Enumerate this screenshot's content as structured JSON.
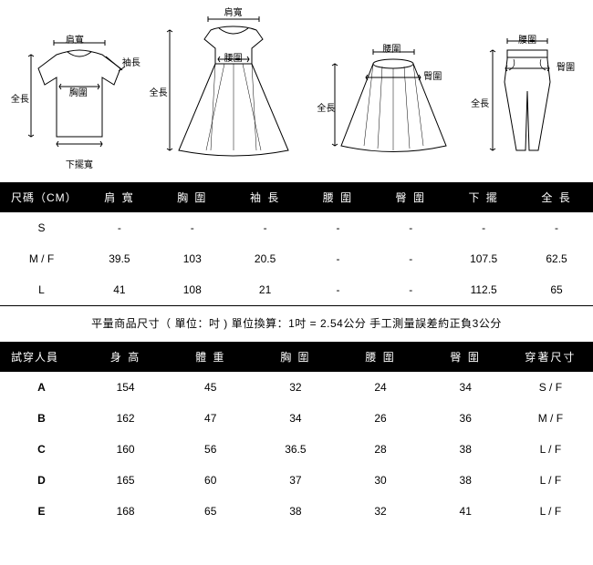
{
  "diagrams": {
    "tshirt": {
      "shoulder": "肩寬",
      "sleeve": "袖長",
      "chest": "胸圍",
      "length": "全長",
      "hem": "下擺寬"
    },
    "dress": {
      "shoulder": "肩寬",
      "waist": "腰圍",
      "length": "全長"
    },
    "skirt": {
      "waist": "腰圍",
      "hip": "臀圍",
      "length": "全長"
    },
    "pants": {
      "waist": "腰圍",
      "hip": "臀圍",
      "length": "全長"
    }
  },
  "size_table": {
    "headers": [
      "尺碼（CM）",
      "肩 寬",
      "胸 圍",
      "袖 長",
      "腰 圍",
      "臀 圍",
      "下 擺",
      "全 長"
    ],
    "rows": [
      {
        "size": "S",
        "shoulder": "-",
        "chest": "-",
        "sleeve": "-",
        "waist": "-",
        "hip": "-",
        "hem": "-",
        "length": "-"
      },
      {
        "size": "M / F",
        "shoulder": "39.5",
        "chest": "103",
        "sleeve": "20.5",
        "waist": "-",
        "hip": "-",
        "hem": "107.5",
        "length": "62.5"
      },
      {
        "size": "L",
        "shoulder": "41",
        "chest": "108",
        "sleeve": "21",
        "waist": "-",
        "hip": "-",
        "hem": "112.5",
        "length": "65"
      }
    ]
  },
  "note": "平量商品尺寸（ 單位：吋 ) 單位換算：1吋 = 2.54公分  手工測量誤差約正負3公分",
  "fit_table": {
    "headers": [
      "試穿人員",
      "身 高",
      "體 重",
      "胸 圍",
      "腰 圍",
      "臀 圍",
      "穿著尺寸"
    ],
    "rows": [
      {
        "person": "A",
        "height": "154",
        "weight": "45",
        "chest": "32",
        "waist": "24",
        "hip": "34",
        "size": "S / F"
      },
      {
        "person": "B",
        "height": "162",
        "weight": "47",
        "chest": "34",
        "waist": "26",
        "hip": "36",
        "size": "M / F"
      },
      {
        "person": "C",
        "height": "160",
        "weight": "56",
        "chest": "36.5",
        "waist": "28",
        "hip": "38",
        "size": "L / F"
      },
      {
        "person": "D",
        "height": "165",
        "weight": "60",
        "chest": "37",
        "waist": "30",
        "hip": "38",
        "size": "L / F"
      },
      {
        "person": "E",
        "height": "168",
        "weight": "65",
        "chest": "38",
        "waist": "32",
        "hip": "41",
        "size": "L / F"
      }
    ]
  }
}
